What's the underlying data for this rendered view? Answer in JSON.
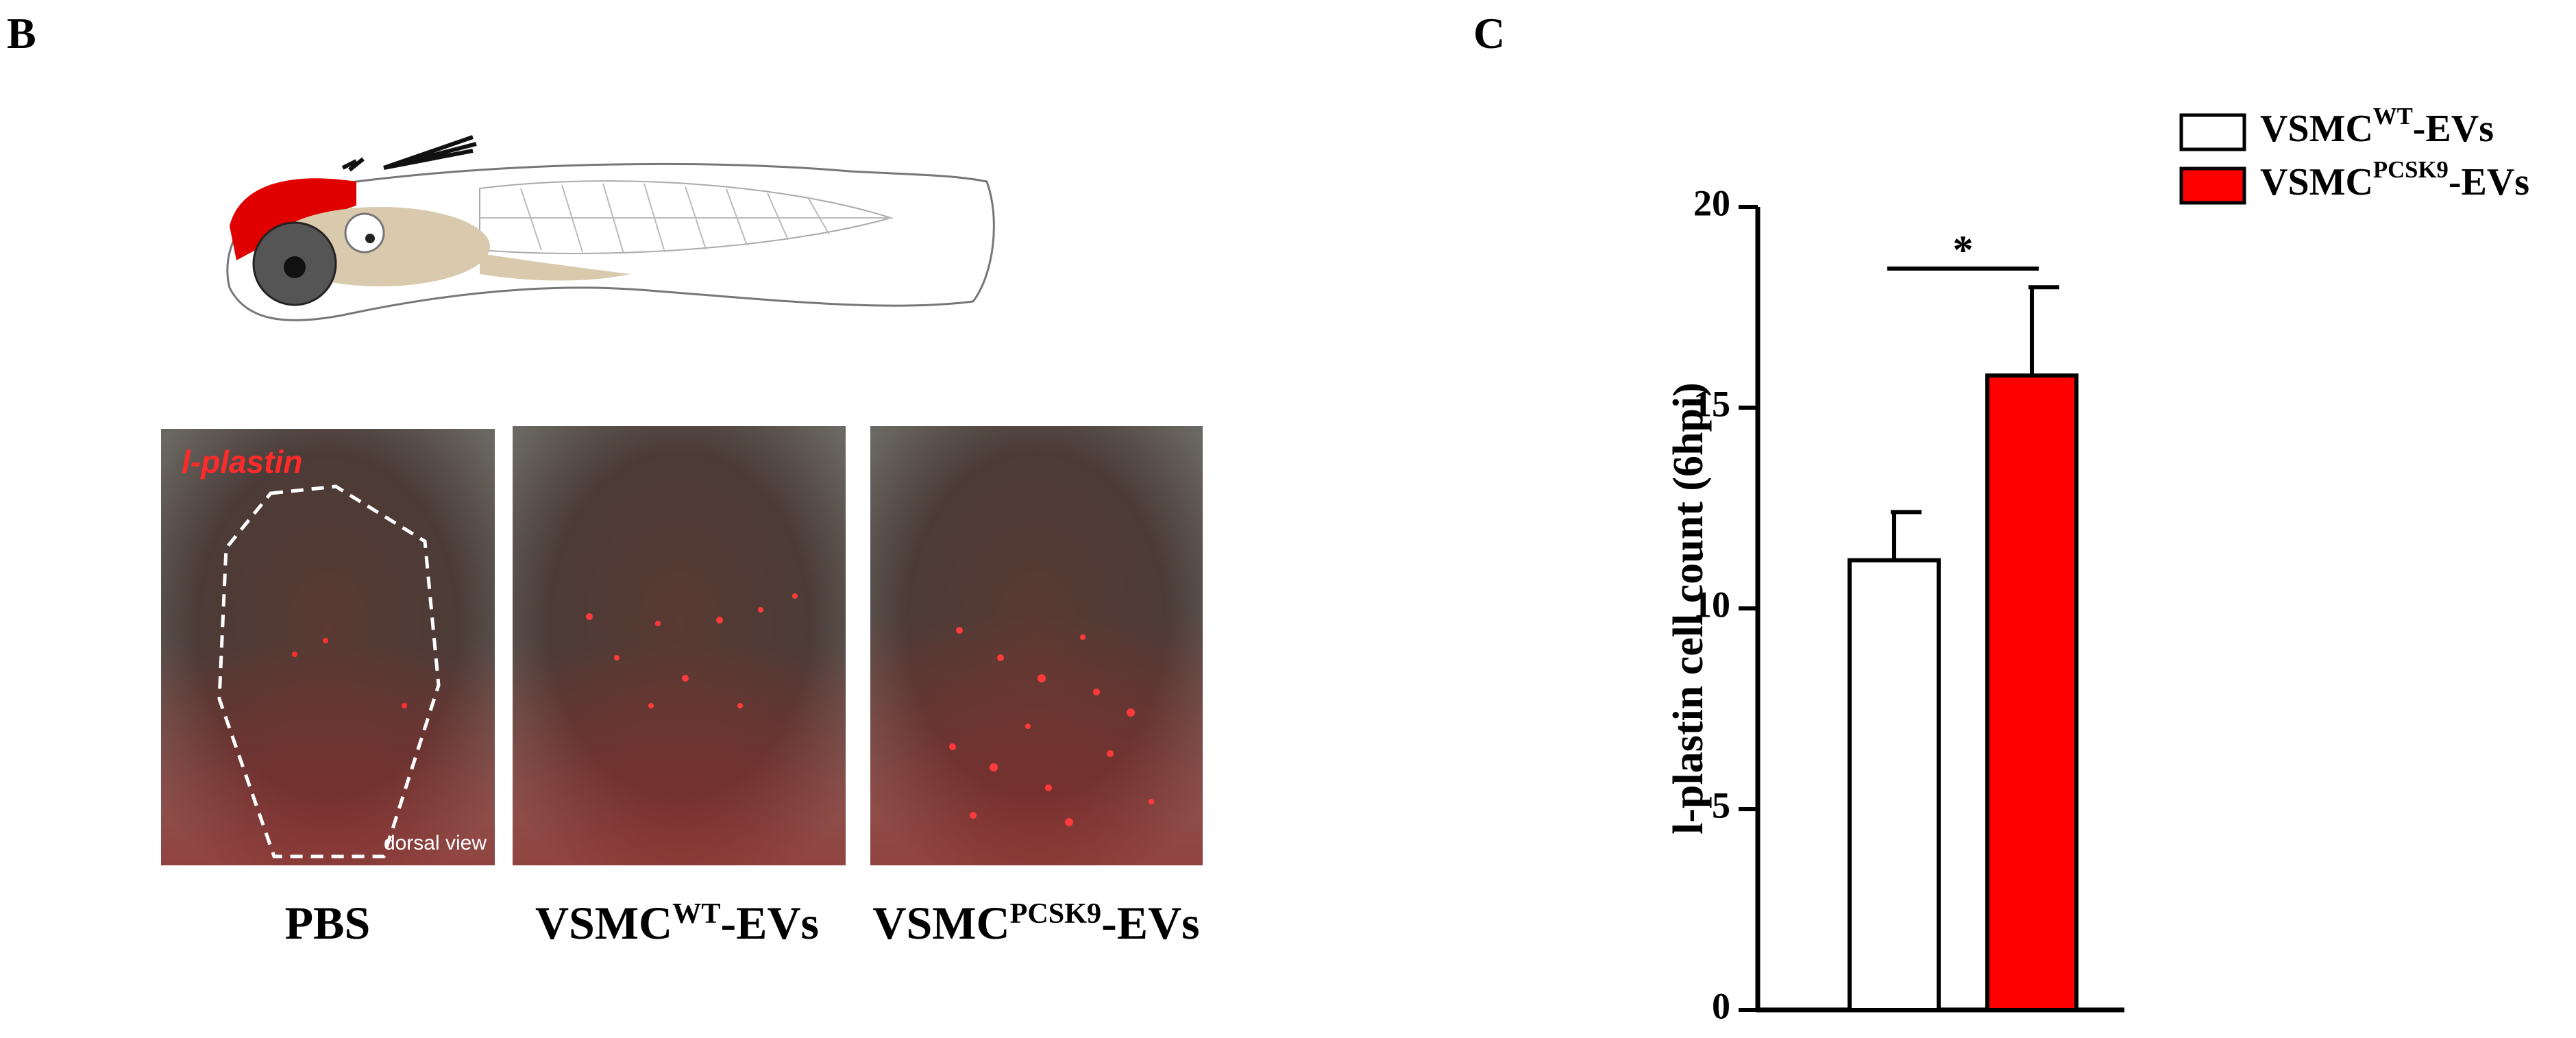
{
  "panel_b": {
    "label": "B",
    "inset_label": "l-plastin",
    "view_label": "dorsal view",
    "image_labels": [
      [
        "PBS"
      ],
      [
        "VSMC",
        "WT",
        "-EVs"
      ],
      [
        "VSMC",
        "PCSK9",
        "-EVs"
      ]
    ]
  },
  "chart_data": {
    "type": "bar",
    "panel_label": "C",
    "ylabel": "l-plastin cell count (6hpi)",
    "series": [
      {
        "name": [
          "VSMC",
          "WT",
          "-EVs"
        ],
        "color": "#ffffff",
        "values": [
          11.2
        ],
        "errors": [
          1.2
        ]
      },
      {
        "name": [
          "VSMC",
          "PCSK9",
          "-EVs"
        ],
        "color": "#ff0000",
        "values": [
          15.8
        ],
        "errors": [
          2.2
        ]
      }
    ],
    "significance": "*",
    "ylim": [
      0,
      20
    ],
    "yticks": [
      0,
      5,
      10,
      15,
      20
    ],
    "legend": "upper right"
  }
}
